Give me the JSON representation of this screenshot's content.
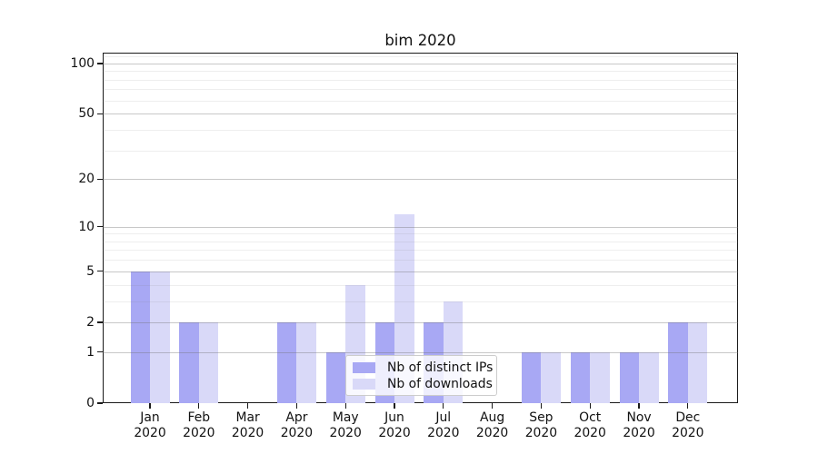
{
  "title": "bim 2020",
  "legend": {
    "items": [
      {
        "label": "Nb of distinct IPs",
        "color_key": "ips"
      },
      {
        "label": "Nb of downloads",
        "color_key": "downloads"
      }
    ]
  },
  "colors": {
    "ips": "#a8a8f4",
    "downloads": "#d9d9f8",
    "grid_major": "rgba(110,110,110,0.38)",
    "grid_minor": "rgba(120,120,120,0.13)",
    "spine": "#1a1a1a",
    "text": "#111111"
  },
  "chart_data": {
    "type": "bar",
    "title": "bim 2020",
    "xlabel": "",
    "ylabel": "",
    "categories": [
      "Jan 2020",
      "Feb 2020",
      "Mar 2020",
      "Apr 2020",
      "May 2020",
      "Jun 2020",
      "Jul 2020",
      "Aug 2020",
      "Sep 2020",
      "Oct 2020",
      "Nov 2020",
      "Dec 2020"
    ],
    "series": [
      {
        "name": "Nb of distinct IPs",
        "color_key": "ips",
        "values": [
          5,
          2,
          0,
          2,
          1,
          2,
          2,
          0,
          1,
          1,
          1,
          2
        ]
      },
      {
        "name": "Nb of downloads",
        "color_key": "downloads",
        "values": [
          5,
          2,
          0,
          2,
          4,
          12,
          3,
          0,
          1,
          1,
          1,
          2
        ]
      }
    ],
    "yscale": "log1p",
    "yticks": [
      0,
      1,
      2,
      5,
      10,
      20,
      50,
      100
    ],
    "yticks_minor": [
      3,
      4,
      6,
      7,
      8,
      9,
      30,
      40,
      60,
      70,
      80,
      90,
      110
    ],
    "ylim": [
      0,
      116
    ],
    "grid": true,
    "legend_position": "lower center"
  }
}
